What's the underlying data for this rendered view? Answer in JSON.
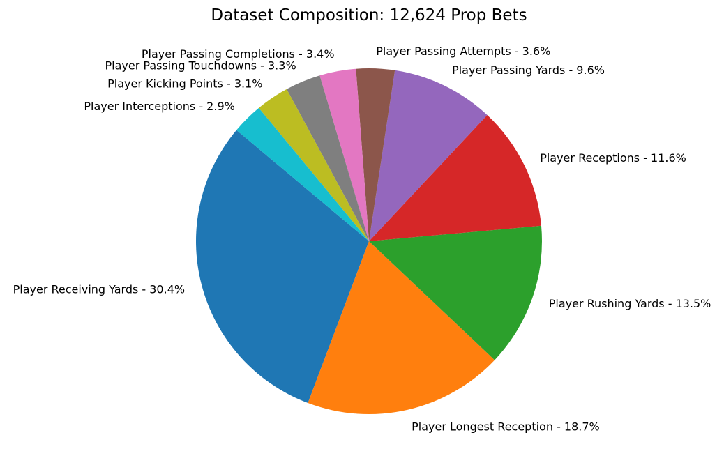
{
  "chart_data": {
    "type": "pie",
    "title": "Dataset Composition: 12,624 Prop Bets",
    "start_angle_deg": 140,
    "direction": "counterclockwise",
    "slices": [
      {
        "label": "Player Receiving Yards - 30.4%",
        "value": 30.4,
        "color": "#1f77b4"
      },
      {
        "label": "Player Longest Reception - 18.7%",
        "value": 18.7,
        "color": "#ff7f0e"
      },
      {
        "label": "Player Rushing Yards - 13.5%",
        "value": 13.5,
        "color": "#2ca02c"
      },
      {
        "label": "Player Receptions - 11.6%",
        "value": 11.6,
        "color": "#d62728"
      },
      {
        "label": "Player Passing Yards - 9.6%",
        "value": 9.6,
        "color": "#9467bd"
      },
      {
        "label": "Player Passing Attempts - 3.6%",
        "value": 3.6,
        "color": "#8c564b"
      },
      {
        "label": "Player Passing Completions - 3.4%",
        "value": 3.4,
        "color": "#e377c2"
      },
      {
        "label": "Player Passing Touchdowns - 3.3%",
        "value": 3.3,
        "color": "#7f7f7f"
      },
      {
        "label": "Player Kicking Points - 3.1%",
        "value": 3.1,
        "color": "#bcbd22"
      },
      {
        "label": "Player Interceptions - 2.9%",
        "value": 2.9,
        "color": "#17becf"
      }
    ]
  }
}
